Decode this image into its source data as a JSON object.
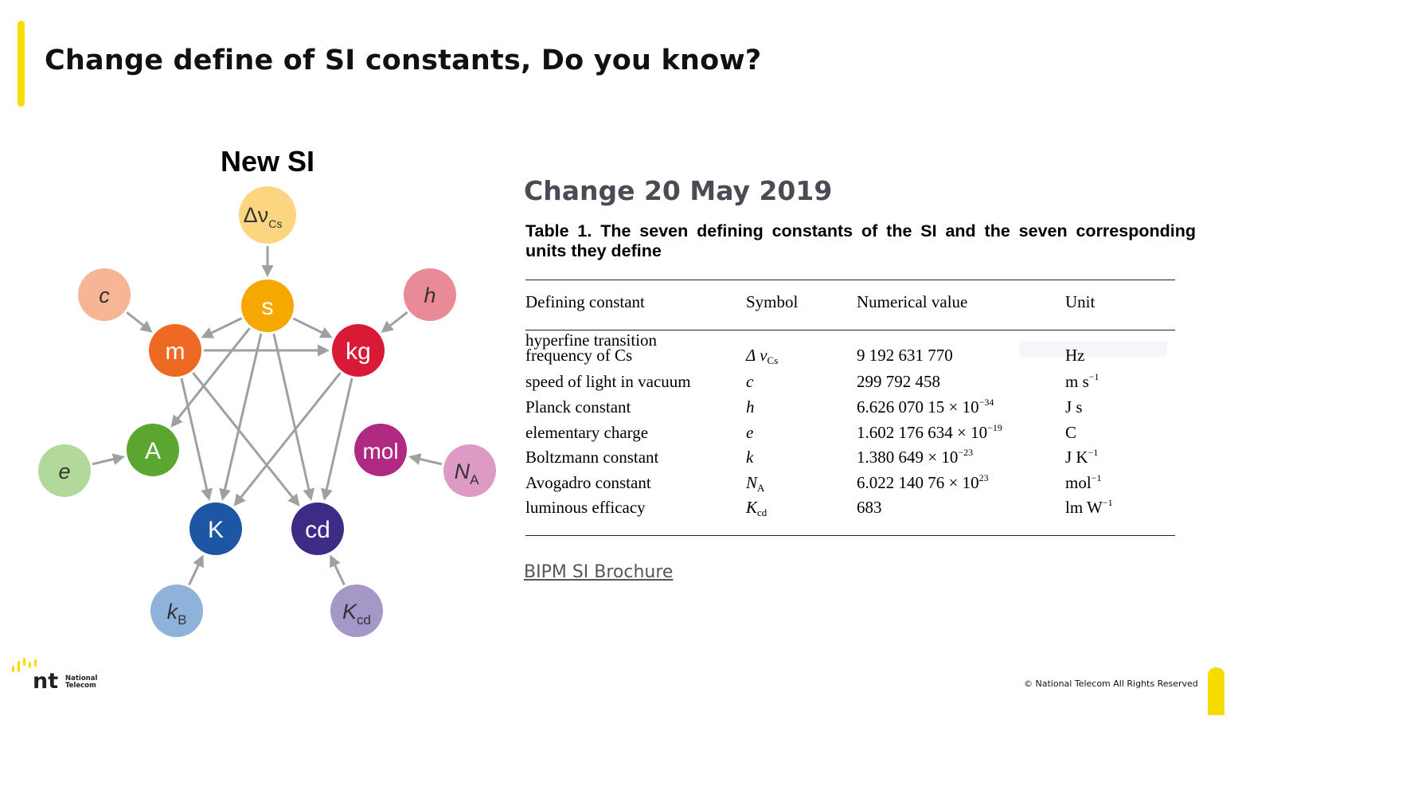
{
  "slide": {
    "title": "Change define of SI constants, Do you know?",
    "accent_color": "#f5dd00"
  },
  "diagram": {
    "heading": "New SI",
    "nodes": {
      "s": {
        "label": "s",
        "color": "#f5a800"
      },
      "m": {
        "label": "m",
        "color": "#ee6a24"
      },
      "kg": {
        "label": "kg",
        "color": "#d81a36"
      },
      "A": {
        "label": "A",
        "color": "#5aa631"
      },
      "mol": {
        "label": "mol",
        "color": "#b02a84"
      },
      "K": {
        "label": "K",
        "color": "#1e56a6"
      },
      "cd": {
        "label": "cd",
        "color": "#3d2b86"
      },
      "dnu": {
        "label": "Δν",
        "sub": "Cs",
        "color": "#fbd57f"
      },
      "c": {
        "label": "c",
        "color": "#f6b595"
      },
      "h": {
        "label": "h",
        "color": "#e98b97"
      },
      "e": {
        "label": "e",
        "color": "#b2d89c"
      },
      "NA": {
        "label": "N",
        "sub": "A",
        "color": "#dd9ac5"
      },
      "kB": {
        "label": "k",
        "sub": "B",
        "color": "#8fb2db"
      },
      "Kcd": {
        "label": "K",
        "sub": "cd",
        "color": "#a597c8"
      }
    },
    "arrow_color": "#a0a0a0"
  },
  "content": {
    "change_heading": "Change 20 May 2019",
    "table_caption_line1": "Table 1. The seven defining constants of the SI and the seven corresponding",
    "table_caption_line2": "units they define",
    "headers": {
      "constant": "Defining constant",
      "symbol": "Symbol",
      "value": "Numerical value",
      "unit": "Unit"
    },
    "rows": {
      "hyperfine": {
        "constant_1": "hyperfine transition",
        "constant_2": "frequency of Cs",
        "symbol": "Δ ν",
        "symbol_sub": "Cs",
        "value": "9 192 631 770",
        "unit": "Hz"
      },
      "light": {
        "constant": "speed of light in vacuum",
        "symbol": "c",
        "value": "299 792 458",
        "unit": "m s",
        "unit_sup": "−1"
      },
      "planck": {
        "constant": "Planck constant",
        "symbol": "h",
        "value": "6.626 070 15 × 10",
        "value_sup": "−34",
        "unit": "J s"
      },
      "charge": {
        "constant": "elementary charge",
        "symbol": "e",
        "value": "1.602 176 634 × 10",
        "value_sup": "−19",
        "unit": "C"
      },
      "boltzmann": {
        "constant": "Boltzmann constant",
        "symbol": "k",
        "value": "1.380 649 × 10",
        "value_sup": "−23",
        "unit": "J K",
        "unit_sup": "−1"
      },
      "avogadro": {
        "constant": "Avogadro constant",
        "symbol": "N",
        "symbol_sub": "A",
        "value": "6.022 140 76 × 10",
        "value_sup": "23",
        "unit": "mol",
        "unit_sup": "−1"
      },
      "luminous": {
        "constant": "luminous efficacy",
        "symbol": "K",
        "symbol_sub": "cd",
        "value": "683",
        "unit": "lm W",
        "unit_sup": "−1"
      }
    },
    "source_link": "BIPM SI Brochure"
  },
  "footer": {
    "logo_mark": "nt",
    "logo_text_1": "National",
    "logo_text_2": "Telecom",
    "copyright": "© National Telecom All Rights Reserved"
  }
}
